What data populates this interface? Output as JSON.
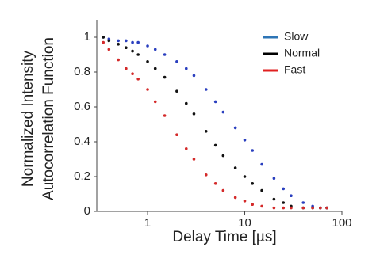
{
  "chart_data": {
    "type": "scatter",
    "x_label": "Delay Time [µs]",
    "y_label": [
      "Normalized Intensity",
      "Autocorrelation Function"
    ],
    "x": [
      0.35,
      0.4,
      0.5,
      0.6,
      0.7,
      0.8,
      1,
      1.2,
      1.5,
      2,
      2.5,
      3,
      4,
      5,
      6,
      8,
      10,
      12,
      15,
      20,
      25,
      30,
      40,
      50,
      60,
      70
    ],
    "series": [
      {
        "name": "Slow",
        "color": "#2a3fbf",
        "legend_color": "#2e75b6",
        "values": [
          1.0,
          0.99,
          0.98,
          0.98,
          0.97,
          0.97,
          0.95,
          0.93,
          0.9,
          0.86,
          0.82,
          0.78,
          0.7,
          0.63,
          0.57,
          0.48,
          0.41,
          0.35,
          0.27,
          0.19,
          0.13,
          0.09,
          0.05,
          0.03,
          0.02,
          0.02
        ]
      },
      {
        "name": "Normal",
        "color": "#111111",
        "legend_color": "#000000",
        "values": [
          1.0,
          0.98,
          0.96,
          0.94,
          0.92,
          0.9,
          0.86,
          0.82,
          0.77,
          0.69,
          0.62,
          0.56,
          0.46,
          0.38,
          0.32,
          0.25,
          0.2,
          0.16,
          0.12,
          0.07,
          0.05,
          0.03,
          0.02,
          0.02,
          0.02,
          0.02
        ]
      },
      {
        "name": "Fast",
        "color": "#d42a2a",
        "legend_color": "#e02020",
        "values": [
          0.97,
          0.93,
          0.87,
          0.82,
          0.79,
          0.76,
          0.7,
          0.63,
          0.55,
          0.44,
          0.36,
          0.3,
          0.21,
          0.16,
          0.12,
          0.08,
          0.06,
          0.04,
          0.03,
          0.02,
          0.02,
          0.02,
          0.02,
          0.02,
          0.02,
          0.02
        ]
      }
    ],
    "xlog": true,
    "xlim": [
      0.3,
      100
    ],
    "xticks": [
      1,
      10,
      100
    ],
    "ylim": [
      0,
      1.1
    ],
    "yticks": [
      0,
      0.2,
      0.4,
      0.6,
      0.8,
      1
    ],
    "legend": "upper right"
  }
}
